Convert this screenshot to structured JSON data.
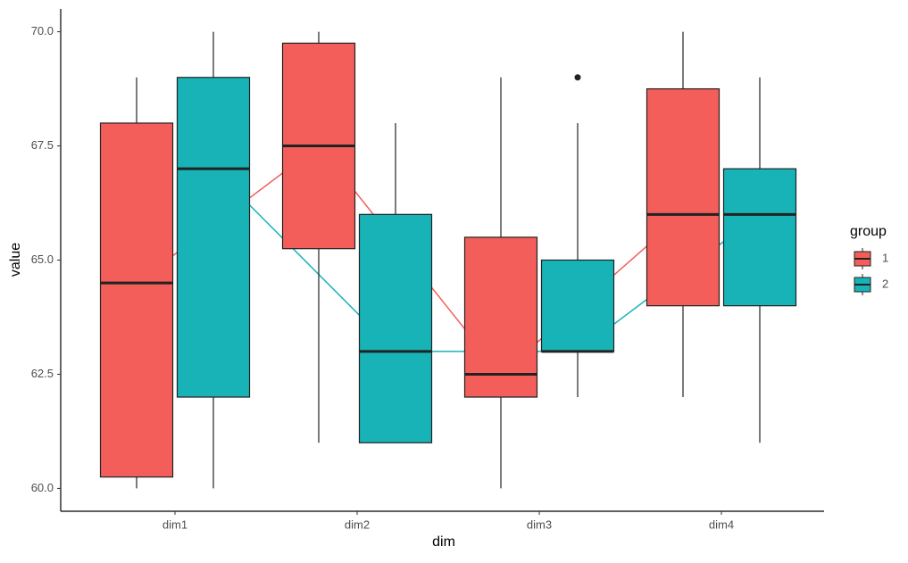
{
  "chart_data": {
    "type": "boxplot",
    "x_label": "dim",
    "y_label": "value",
    "categories": [
      "dim1",
      "dim2",
      "dim3",
      "dim4"
    ],
    "ylim": [
      59.5,
      70.5
    ],
    "yticks": [
      {
        "value": 60,
        "label": "60.0"
      },
      62.5,
      {
        "value": 65,
        "label": "65.0"
      },
      67.5,
      {
        "value": 70,
        "label": "70.0"
      }
    ],
    "legend_title": "group",
    "median_lines": true,
    "series": [
      {
        "name": "1",
        "color": "#f35e5a",
        "whisker_low": [
          60,
          61,
          60,
          62
        ],
        "q1": [
          60.25,
          65.25,
          62,
          64
        ],
        "median": [
          64.5,
          67.5,
          62.5,
          66
        ],
        "q3": [
          68,
          69.75,
          65.5,
          68.75
        ],
        "whisker_high": [
          69,
          70,
          69,
          70
        ]
      },
      {
        "name": "2",
        "color": "#17b3b7",
        "whisker_low": [
          60,
          61,
          62,
          61
        ],
        "q1": [
          62,
          61,
          63,
          64
        ],
        "median": [
          67,
          63,
          63,
          66
        ],
        "q3": [
          69,
          66,
          65,
          67
        ],
        "whisker_high": [
          70,
          68,
          68,
          69
        ],
        "outliers": [
          {
            "category": "dim3",
            "value": 69
          }
        ]
      }
    ]
  }
}
